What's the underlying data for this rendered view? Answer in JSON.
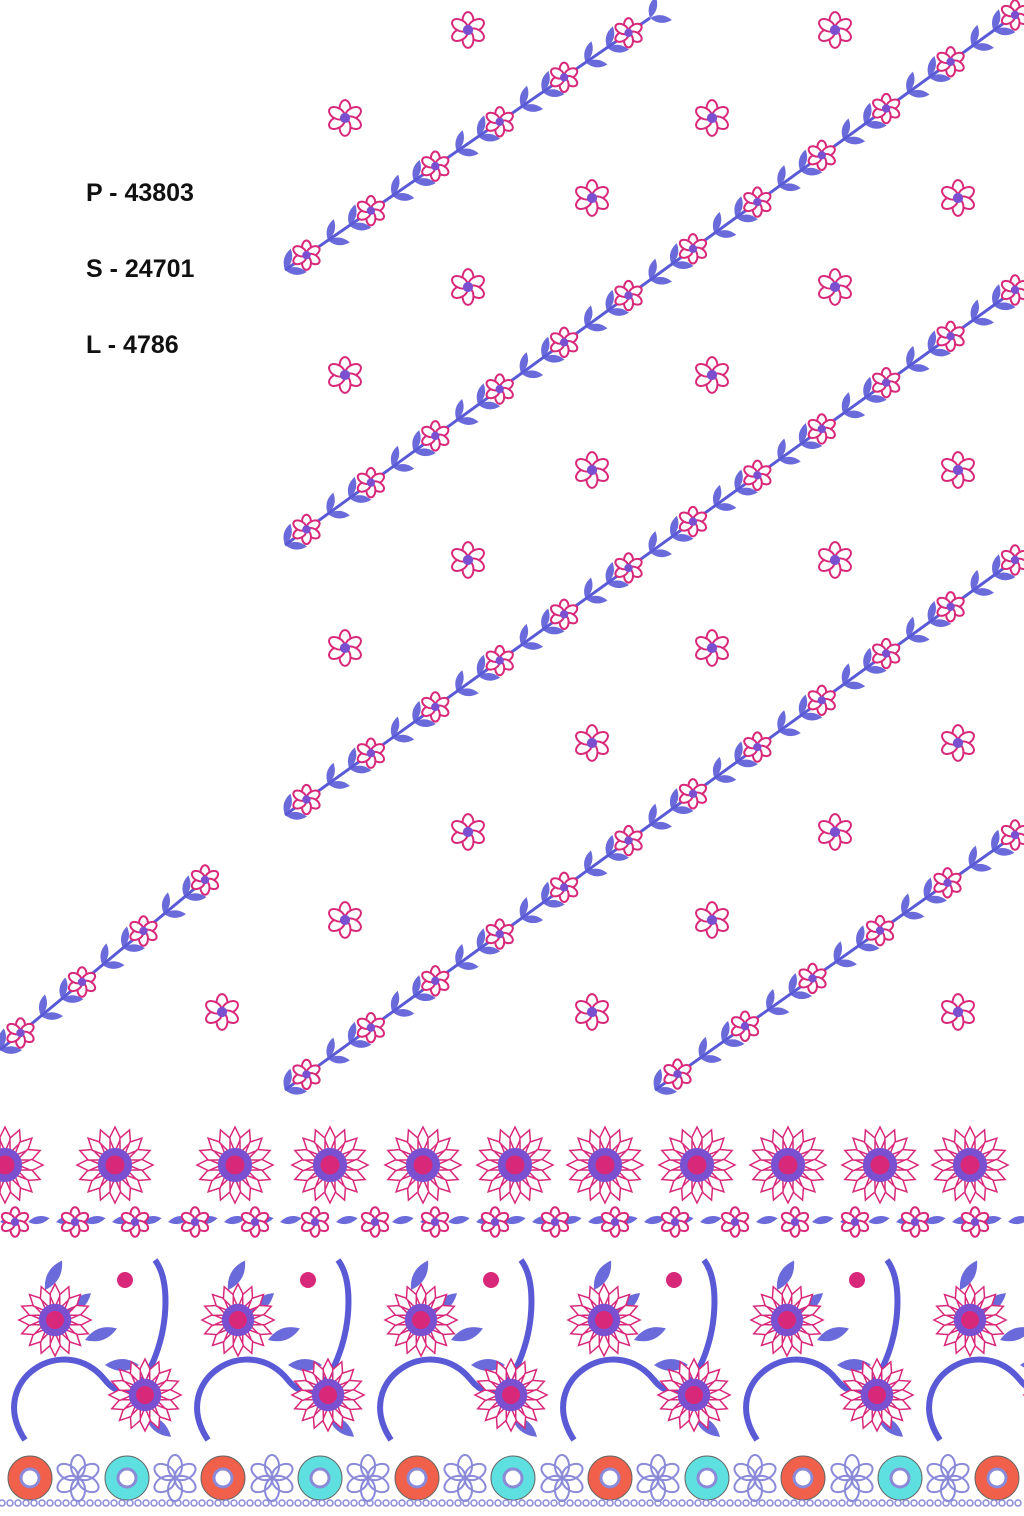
{
  "design_codes": {
    "p": "P - 43803",
    "s": "S - 24701",
    "l": "L - 4786"
  },
  "colors": {
    "background": "#ffffff",
    "leaf_blue": "#5a5ad6",
    "flower_pink": "#d8287a",
    "flower_violet": "#7a4fd0",
    "donut_red": "#f0604a",
    "donut_cyan": "#5fe0e0",
    "lace_blue": "#8a8ad8"
  },
  "motifs": {
    "diagonal_vines": "leaf-and-flower vine",
    "scatter_flower": "small pink flower",
    "border": "floral border with donut beads"
  }
}
